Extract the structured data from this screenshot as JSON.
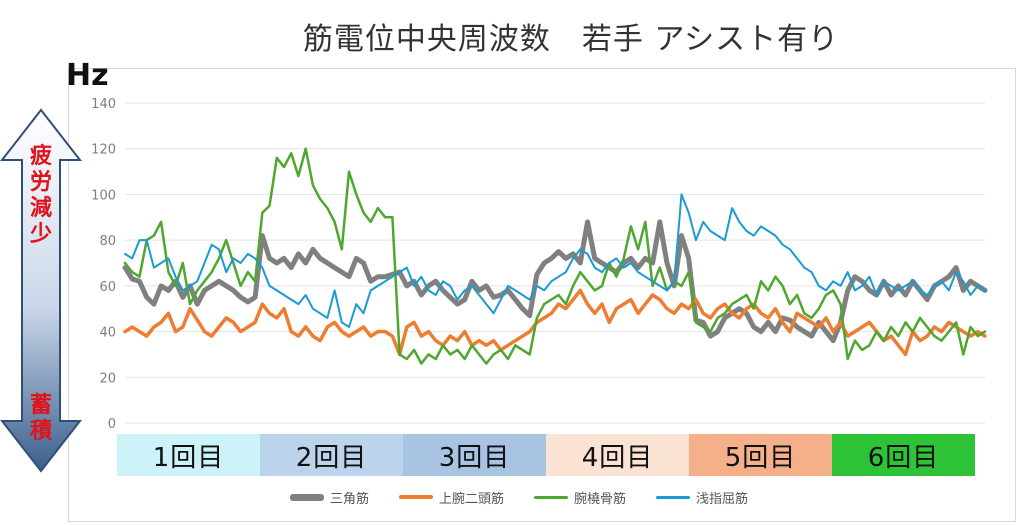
{
  "chart_data": {
    "type": "line",
    "title": "筋電位中央周波数　若手 アシスト有り",
    "ylabel": "Hz",
    "ylim": [
      0,
      140
    ],
    "yticks": [
      0,
      20,
      40,
      60,
      80,
      100,
      120,
      140
    ],
    "grid": true,
    "legend_position": "bottom",
    "x": [
      1,
      2,
      3,
      4,
      5,
      6,
      7,
      8,
      9,
      10,
      11,
      12,
      13,
      14,
      15,
      16,
      17,
      18,
      19,
      20,
      21,
      22,
      23,
      24,
      25,
      26,
      27,
      28,
      29,
      30,
      31,
      32,
      33,
      34,
      35,
      36,
      37,
      38,
      39,
      40,
      41,
      42,
      43,
      44,
      45,
      46,
      47,
      48,
      49,
      50,
      51,
      52,
      53,
      54,
      55,
      56,
      57,
      58,
      59,
      60,
      61,
      62,
      63,
      64,
      65,
      66,
      67,
      68,
      69,
      70,
      71,
      72,
      73,
      74,
      75,
      76,
      77,
      78,
      79,
      80,
      81,
      82,
      83,
      84,
      85,
      86,
      87,
      88,
      89,
      90,
      91,
      92,
      93,
      94,
      95,
      96,
      97,
      98,
      99,
      100,
      101,
      102,
      103,
      104,
      105,
      106,
      107,
      108,
      109,
      110,
      111,
      112,
      113,
      114,
      115,
      116,
      117,
      118,
      119,
      120
    ],
    "series": [
      {
        "name": "三角筋",
        "color": "#808080",
        "values": [
          68,
          63,
          62,
          55,
          52,
          60,
          58,
          62,
          55,
          60,
          52,
          58,
          60,
          62,
          60,
          58,
          55,
          53,
          55,
          82,
          72,
          70,
          72,
          68,
          74,
          70,
          76,
          72,
          70,
          68,
          66,
          64,
          72,
          70,
          62,
          64,
          64,
          65,
          66,
          60,
          62,
          56,
          60,
          62,
          58,
          55,
          52,
          54,
          62,
          58,
          60,
          55,
          56,
          58,
          54,
          50,
          47,
          65,
          70,
          72,
          75,
          72,
          74,
          70,
          88,
          72,
          70,
          68,
          66,
          70,
          72,
          68,
          72,
          70,
          88,
          70,
          60,
          82,
          72,
          45,
          44,
          38,
          40,
          46,
          48,
          50,
          48,
          42,
          40,
          44,
          40,
          46,
          45,
          42,
          40,
          38,
          44,
          40,
          36,
          44,
          58,
          64,
          62,
          58,
          56,
          62,
          56,
          60,
          56,
          62,
          58,
          54,
          60,
          62,
          64,
          68,
          58,
          62,
          60,
          58
        ]
      },
      {
        "name": "上腕二頭筋",
        "color": "#ed7d31",
        "values": [
          40,
          42,
          40,
          38,
          42,
          44,
          48,
          40,
          42,
          50,
          45,
          40,
          38,
          42,
          46,
          44,
          40,
          42,
          44,
          52,
          48,
          46,
          50,
          40,
          38,
          42,
          38,
          36,
          42,
          44,
          40,
          38,
          40,
          42,
          38,
          40,
          40,
          38,
          30,
          42,
          44,
          38,
          40,
          36,
          34,
          38,
          36,
          40,
          34,
          36,
          34,
          36,
          32,
          34,
          36,
          38,
          40,
          44,
          46,
          48,
          52,
          50,
          54,
          58,
          52,
          48,
          52,
          44,
          50,
          52,
          54,
          48,
          52,
          56,
          54,
          50,
          48,
          52,
          50,
          54,
          48,
          46,
          50,
          52,
          48,
          46,
          50,
          52,
          48,
          46,
          50,
          44,
          40,
          48,
          46,
          44,
          42,
          46,
          40,
          44,
          38,
          40,
          42,
          44,
          40,
          36,
          38,
          34,
          30,
          40,
          36,
          38,
          42,
          40,
          44,
          42,
          40,
          38,
          40,
          38
        ]
      },
      {
        "name": "腕橈骨筋",
        "color": "#4ea72e",
        "values": [
          70,
          66,
          64,
          80,
          82,
          88,
          66,
          60,
          70,
          52,
          58,
          62,
          66,
          72,
          80,
          70,
          60,
          66,
          62,
          92,
          95,
          116,
          112,
          118,
          108,
          120,
          104,
          98,
          94,
          88,
          76,
          110,
          100,
          92,
          88,
          94,
          90,
          90,
          30,
          28,
          32,
          26,
          30,
          28,
          34,
          30,
          32,
          28,
          34,
          30,
          26,
          30,
          32,
          28,
          34,
          32,
          30,
          46,
          52,
          54,
          56,
          52,
          60,
          66,
          62,
          58,
          60,
          70,
          64,
          72,
          86,
          76,
          88,
          60,
          68,
          58,
          62,
          60,
          66,
          44,
          42,
          40,
          46,
          48,
          52,
          54,
          56,
          50,
          62,
          58,
          64,
          60,
          52,
          56,
          48,
          46,
          50,
          56,
          58,
          52,
          28,
          36,
          32,
          34,
          40,
          36,
          42,
          38,
          44,
          40,
          46,
          42,
          38,
          36,
          40,
          44,
          30,
          42,
          38,
          40
        ]
      },
      {
        "name": "浅指屈筋",
        "color": "#1b9bd4",
        "values": [
          74,
          72,
          80,
          80,
          68,
          70,
          72,
          64,
          58,
          60,
          62,
          70,
          78,
          76,
          66,
          72,
          70,
          74,
          72,
          68,
          60,
          58,
          56,
          54,
          52,
          56,
          50,
          48,
          46,
          58,
          44,
          42,
          52,
          48,
          58,
          60,
          62,
          64,
          66,
          68,
          60,
          64,
          58,
          56,
          62,
          60,
          54,
          58,
          60,
          56,
          52,
          48,
          54,
          60,
          58,
          56,
          54,
          60,
          58,
          62,
          64,
          66,
          72,
          76,
          74,
          68,
          66,
          70,
          72,
          68,
          70,
          66,
          64,
          62,
          60,
          58,
          62,
          100,
          92,
          80,
          88,
          84,
          82,
          80,
          94,
          88,
          84,
          82,
          86,
          84,
          82,
          78,
          76,
          72,
          68,
          66,
          60,
          58,
          62,
          60,
          66,
          58,
          60,
          64,
          56,
          62,
          60,
          58,
          60,
          62,
          58,
          56,
          60,
          62,
          58,
          66,
          62,
          56,
          60,
          58
        ]
      }
    ],
    "bands": [
      {
        "label": "1回目",
        "color": "#ccf2fa"
      },
      {
        "label": "2回目",
        "color": "#bcd3ec"
      },
      {
        "label": "3回目",
        "color": "#a9c4e3"
      },
      {
        "label": "4回目",
        "color": "#fbe3d4"
      },
      {
        "label": "5回目",
        "color": "#f3b08a"
      },
      {
        "label": "6回目",
        "color": "#2ec337"
      }
    ],
    "arrow_labels": {
      "top": "疲労減少",
      "bottom": "蓄積"
    }
  }
}
